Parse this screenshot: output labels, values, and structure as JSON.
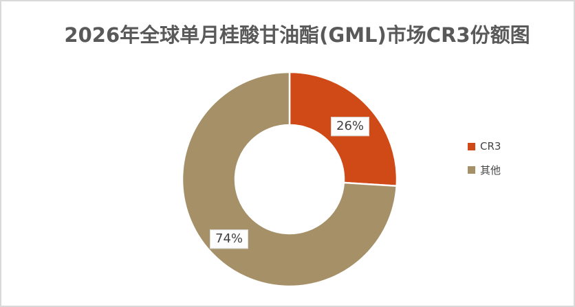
{
  "chart_data": {
    "type": "pie",
    "subtype": "donut",
    "title": "2026年全球单月桂酸甘油酯(GML)市场CR3份额图",
    "categories": [
      "CR3",
      "其他"
    ],
    "values": [
      26,
      74
    ],
    "data_labels": [
      "26%",
      "74%"
    ],
    "colors": [
      "#d04a17",
      "#a59068"
    ],
    "start_angle_deg": 0,
    "direction": "clockwise",
    "legend_position": "right",
    "separator_color": "#ffffff"
  },
  "legend": {
    "items": [
      {
        "label": "CR3",
        "color": "#d04a17"
      },
      {
        "label": "其他",
        "color": "#a59068"
      }
    ]
  },
  "colors": {
    "title_text": "#595959",
    "label_text": "#404040",
    "frame_border": "#d9d9d9",
    "background": "#ffffff"
  }
}
